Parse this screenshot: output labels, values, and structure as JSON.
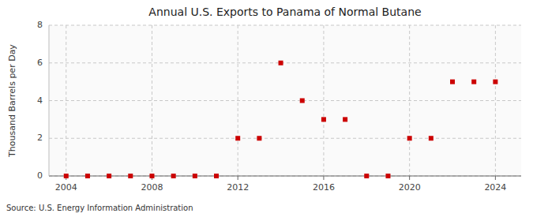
{
  "chart_data": {
    "type": "scatter",
    "title": "Annual U.S. Exports to Panama of Normal Butane",
    "ylabel": "Thousand Barrels per Day",
    "annotations": [
      "Source: U.S. Energy Information Administration"
    ],
    "x": [
      2004,
      2005,
      2006,
      2007,
      2008,
      2009,
      2010,
      2011,
      2012,
      2013,
      2014,
      2015,
      2016,
      2017,
      2018,
      2019,
      2020,
      2021,
      2022,
      2023,
      2024
    ],
    "values": [
      0,
      0,
      0,
      0,
      0,
      0,
      0,
      0,
      2,
      2,
      6,
      4,
      3,
      3,
      0,
      0,
      2,
      2,
      5,
      5,
      5
    ],
    "color": "#cc0000",
    "marker": "square",
    "xlim": [
      2003.2,
      2025.2
    ],
    "ylim": [
      0,
      8
    ],
    "xticks": [
      2004,
      2008,
      2012,
      2016,
      2020,
      2024
    ],
    "yticks": [
      0,
      2,
      4,
      6,
      8
    ],
    "grid": true
  }
}
